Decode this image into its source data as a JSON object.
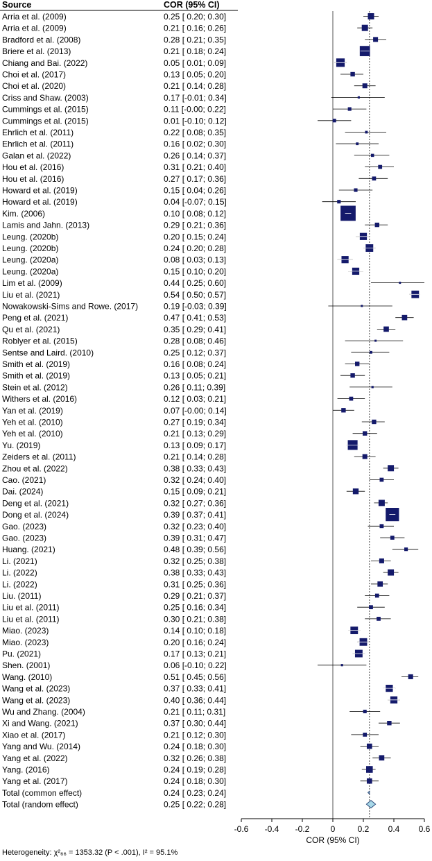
{
  "chart_data": {
    "type": "forest",
    "header_source": "Source",
    "header_estimate": "COR (95% CI)",
    "xlabel": "COR (95% CI)",
    "xlim": [
      -0.6,
      0.6
    ],
    "xticks": [
      "-0.6",
      "-0.4",
      "-0.2",
      "0",
      "0.2",
      "0.4",
      "0.6"
    ],
    "xtick_values": [
      -0.6,
      -0.4,
      -0.2,
      0,
      0.2,
      0.4,
      0.6
    ],
    "null_line": 0,
    "pooled_reference": 0.24,
    "studies": [
      {
        "name": "Arria et al. (2009)",
        "est": 0.25,
        "lo": 0.2,
        "hi": 0.3,
        "label": "0.25 [ 0.20; 0.30]",
        "w": 1.4
      },
      {
        "name": "Arria et al. (2009)",
        "est": 0.21,
        "lo": 0.16,
        "hi": 0.26,
        "label": "0.21 [ 0.16; 0.26]",
        "w": 1.4
      },
      {
        "name": "Bradford et al. (2008)",
        "est": 0.28,
        "lo": 0.21,
        "hi": 0.35,
        "label": "0.28 [ 0.21; 0.35]",
        "w": 1.1
      },
      {
        "name": "Briere et al. (2013)",
        "est": 0.21,
        "lo": 0.18,
        "hi": 0.24,
        "label": "0.21 [ 0.18; 0.24]",
        "w": 2.3
      },
      {
        "name": "Chiang and Bai. (2022)",
        "est": 0.05,
        "lo": 0.01,
        "hi": 0.09,
        "label": "0.05 [ 0.01; 0.09]",
        "w": 1.9
      },
      {
        "name": "Choi et al. (2017)",
        "est": 0.13,
        "lo": 0.05,
        "hi": 0.2,
        "label": "0.13 [ 0.05; 0.20]",
        "w": 1.0
      },
      {
        "name": "Choi et al. (2020)",
        "est": 0.21,
        "lo": 0.14,
        "hi": 0.28,
        "label": "0.21 [ 0.14; 0.28]",
        "w": 1.1
      },
      {
        "name": "Criss and Shaw. (2003)",
        "est": 0.17,
        "lo": -0.01,
        "hi": 0.34,
        "label": "0.17 [-0.01; 0.34]",
        "w": 0.5
      },
      {
        "name": "Cummings et al. (2015)",
        "est": 0.11,
        "lo": 0.0,
        "hi": 0.22,
        "label": "0.11 [-0.00; 0.22]",
        "w": 0.8
      },
      {
        "name": "Cummings et al. (2015)",
        "est": 0.01,
        "lo": -0.1,
        "hi": 0.12,
        "label": "0.01 [-0.10; 0.12]",
        "w": 0.8
      },
      {
        "name": "Ehrlich et al. (2011)",
        "est": 0.22,
        "lo": 0.08,
        "hi": 0.35,
        "label": "0.22 [ 0.08; 0.35]",
        "w": 0.6
      },
      {
        "name": "Ehrlich et al. (2011)",
        "est": 0.16,
        "lo": 0.02,
        "hi": 0.3,
        "label": "0.16 [ 0.02; 0.30]",
        "w": 0.6
      },
      {
        "name": "Galan et al. (2022)",
        "est": 0.26,
        "lo": 0.14,
        "hi": 0.37,
        "label": "0.26 [ 0.14; 0.37]",
        "w": 0.7
      },
      {
        "name": "Hou et al. (2016)",
        "est": 0.31,
        "lo": 0.21,
        "hi": 0.4,
        "label": "0.31 [ 0.21; 0.40]",
        "w": 0.9
      },
      {
        "name": "Hou et al. (2016)",
        "est": 0.27,
        "lo": 0.17,
        "hi": 0.36,
        "label": "0.27 [ 0.17; 0.36]",
        "w": 0.9
      },
      {
        "name": "Howard et al. (2019)",
        "est": 0.15,
        "lo": 0.04,
        "hi": 0.26,
        "label": "0.15 [ 0.04; 0.26]",
        "w": 0.8
      },
      {
        "name": "Howard et al. (2019)",
        "est": 0.04,
        "lo": -0.07,
        "hi": 0.15,
        "label": "0.04 [-0.07; 0.15]",
        "w": 0.8
      },
      {
        "name": "Kim. (2006)",
        "est": 0.1,
        "lo": 0.08,
        "hi": 0.12,
        "label": "0.10 [ 0.08; 0.12]",
        "w": 3.4
      },
      {
        "name": "Lamis and Jahn. (2013)",
        "est": 0.29,
        "lo": 0.21,
        "hi": 0.36,
        "label": "0.29 [ 0.21; 0.36]",
        "w": 1.0
      },
      {
        "name": "Leung. (2020b)",
        "est": 0.2,
        "lo": 0.15,
        "hi": 0.24,
        "label": "0.20 [ 0.15; 0.24]",
        "w": 1.6
      },
      {
        "name": "Leung. (2020b)",
        "est": 0.24,
        "lo": 0.2,
        "hi": 0.28,
        "label": "0.24 [ 0.20; 0.28]",
        "w": 1.7
      },
      {
        "name": "Leung. (2020a)",
        "est": 0.08,
        "lo": 0.03,
        "hi": 0.13,
        "label": "0.08 [ 0.03; 0.13]",
        "w": 1.6
      },
      {
        "name": "Leung. (2020a)",
        "est": 0.15,
        "lo": 0.1,
        "hi": 0.2,
        "label": "0.15 [ 0.10; 0.20]",
        "w": 1.6
      },
      {
        "name": "Lim et al. (2009)",
        "est": 0.44,
        "lo": 0.25,
        "hi": 0.6,
        "label": "0.44 [ 0.25; 0.60]",
        "w": 0.4
      },
      {
        "name": "Liu et al. (2021)",
        "est": 0.54,
        "lo": 0.5,
        "hi": 0.57,
        "label": "0.54 [ 0.50; 0.57]",
        "w": 1.7
      },
      {
        "name": "Nowakowski-Sims and Rowe. (2017)",
        "est": 0.19,
        "lo": -0.03,
        "hi": 0.39,
        "label": "0.19 [-0.03; 0.39]",
        "w": 0.4
      },
      {
        "name": "Peng et al. (2021)",
        "est": 0.47,
        "lo": 0.41,
        "hi": 0.53,
        "label": "0.47 [ 0.41; 0.53]",
        "w": 1.2
      },
      {
        "name": "Qu et al. (2021)",
        "est": 0.35,
        "lo": 0.29,
        "hi": 0.41,
        "label": "0.35 [ 0.29; 0.41]",
        "w": 1.2
      },
      {
        "name": "Roblyer et al. (2015)",
        "est": 0.28,
        "lo": 0.08,
        "hi": 0.46,
        "label": "0.28 [ 0.08; 0.46]",
        "w": 0.4
      },
      {
        "name": "Sentse and Laird. (2010)",
        "est": 0.25,
        "lo": 0.12,
        "hi": 0.37,
        "label": "0.25 [ 0.12; 0.37]",
        "w": 0.6
      },
      {
        "name": "Smith et al. (2019)",
        "est": 0.16,
        "lo": 0.08,
        "hi": 0.24,
        "label": "0.16 [ 0.08; 0.24]",
        "w": 1.0
      },
      {
        "name": "Smith et al. (2019)",
        "est": 0.13,
        "lo": 0.05,
        "hi": 0.21,
        "label": "0.13 [ 0.05; 0.21]",
        "w": 1.0
      },
      {
        "name": "Stein et al. (2012)",
        "est": 0.26,
        "lo": 0.11,
        "hi": 0.39,
        "label": "0.26 [ 0.11; 0.39]",
        "w": 0.5
      },
      {
        "name": "Withers et al. (2016)",
        "est": 0.12,
        "lo": 0.03,
        "hi": 0.21,
        "label": "0.12 [ 0.03; 0.21]",
        "w": 0.9
      },
      {
        "name": "Yan et al. (2019)",
        "est": 0.07,
        "lo": 0.0,
        "hi": 0.14,
        "label": "0.07 [-0.00; 0.14]",
        "w": 1.0
      },
      {
        "name": "Yeh et al. (2010)",
        "est": 0.27,
        "lo": 0.19,
        "hi": 0.34,
        "label": "0.27 [ 0.19; 0.34]",
        "w": 1.0
      },
      {
        "name": "Yeh et al. (2010)",
        "est": 0.21,
        "lo": 0.13,
        "hi": 0.29,
        "label": "0.21 [ 0.13; 0.29]",
        "w": 1.0
      },
      {
        "name": "Yu. (2019)",
        "est": 0.13,
        "lo": 0.09,
        "hi": 0.17,
        "label": "0.13 [ 0.09; 0.17]",
        "w": 2.2
      },
      {
        "name": "Zeiders et al. (2011)",
        "est": 0.21,
        "lo": 0.14,
        "hi": 0.28,
        "label": "0.21 [ 0.14; 0.28]",
        "w": 1.1
      },
      {
        "name": "Zhou et al. (2022)",
        "est": 0.38,
        "lo": 0.33,
        "hi": 0.43,
        "label": "0.38 [ 0.33; 0.43]",
        "w": 1.4
      },
      {
        "name": "Cao. (2021)",
        "est": 0.32,
        "lo": 0.24,
        "hi": 0.4,
        "label": "0.32 [ 0.24; 0.40]",
        "w": 0.9
      },
      {
        "name": "Dai. (2024)",
        "est": 0.15,
        "lo": 0.09,
        "hi": 0.21,
        "label": "0.15 [ 0.09; 0.21]",
        "w": 1.3
      },
      {
        "name": "Deng et al. (2021)",
        "est": 0.32,
        "lo": 0.27,
        "hi": 0.36,
        "label": "0.32 [ 0.27; 0.36]",
        "w": 1.4
      },
      {
        "name": "Dong et al. (2024)",
        "est": 0.39,
        "lo": 0.37,
        "hi": 0.41,
        "label": "0.39 [ 0.37; 0.41]",
        "w": 3.0
      },
      {
        "name": "Gao. (2023)",
        "est": 0.32,
        "lo": 0.23,
        "hi": 0.4,
        "label": "0.32 [ 0.23; 0.40]",
        "w": 0.9
      },
      {
        "name": "Gao. (2023)",
        "est": 0.39,
        "lo": 0.31,
        "hi": 0.47,
        "label": "0.39 [ 0.31; 0.47]",
        "w": 0.9
      },
      {
        "name": "Huang. (2021)",
        "est": 0.48,
        "lo": 0.39,
        "hi": 0.56,
        "label": "0.48 [ 0.39; 0.56]",
        "w": 0.8
      },
      {
        "name": "Li. (2021)",
        "est": 0.32,
        "lo": 0.25,
        "hi": 0.38,
        "label": "0.32 [ 0.25; 0.38]",
        "w": 1.1
      },
      {
        "name": "Li. (2022)",
        "est": 0.38,
        "lo": 0.33,
        "hi": 0.43,
        "label": "0.38 [ 0.33; 0.43]",
        "w": 1.4
      },
      {
        "name": "Li. (2022)",
        "est": 0.31,
        "lo": 0.25,
        "hi": 0.36,
        "label": "0.31 [ 0.25; 0.36]",
        "w": 1.2
      },
      {
        "name": "Liu. (2011)",
        "est": 0.29,
        "lo": 0.21,
        "hi": 0.37,
        "label": "0.29 [ 0.21; 0.37]",
        "w": 0.9
      },
      {
        "name": "Liu et al. (2011)",
        "est": 0.25,
        "lo": 0.16,
        "hi": 0.34,
        "label": "0.25 [ 0.16; 0.34]",
        "w": 0.9
      },
      {
        "name": "Liu et al. (2011)",
        "est": 0.3,
        "lo": 0.21,
        "hi": 0.38,
        "label": "0.30 [ 0.21; 0.38]",
        "w": 0.9
      },
      {
        "name": "Miao. (2023)",
        "est": 0.14,
        "lo": 0.1,
        "hi": 0.18,
        "label": "0.14 [ 0.10; 0.18]",
        "w": 1.7
      },
      {
        "name": "Miao. (2023)",
        "est": 0.2,
        "lo": 0.16,
        "hi": 0.24,
        "label": "0.20 [ 0.16; 0.24]",
        "w": 1.7
      },
      {
        "name": "Pu. (2021)",
        "est": 0.17,
        "lo": 0.13,
        "hi": 0.21,
        "label": "0.17 [ 0.13; 0.21]",
        "w": 1.7
      },
      {
        "name": "Shen. (2001)",
        "est": 0.06,
        "lo": -0.1,
        "hi": 0.22,
        "label": "0.06 [-0.10; 0.22]",
        "w": 0.5
      },
      {
        "name": "Wang. (2010)",
        "est": 0.51,
        "lo": 0.45,
        "hi": 0.56,
        "label": "0.51 [ 0.45; 0.56]",
        "w": 1.1
      },
      {
        "name": "Wang et al. (2023)",
        "est": 0.37,
        "lo": 0.33,
        "hi": 0.41,
        "label": "0.37 [ 0.33; 0.41]",
        "w": 1.6
      },
      {
        "name": "Wang et al. (2023)",
        "est": 0.4,
        "lo": 0.36,
        "hi": 0.44,
        "label": "0.40 [ 0.36; 0.44]",
        "w": 1.6
      },
      {
        "name": "Wu and Zhang. (2004)",
        "est": 0.21,
        "lo": 0.11,
        "hi": 0.31,
        "label": "0.21 [ 0.11; 0.31]",
        "w": 0.8
      },
      {
        "name": "Xi and Wang. (2021)",
        "est": 0.37,
        "lo": 0.3,
        "hi": 0.44,
        "label": "0.37 [ 0.30; 0.44]",
        "w": 1.0
      },
      {
        "name": "Xiao et al. (2017)",
        "est": 0.21,
        "lo": 0.12,
        "hi": 0.3,
        "label": "0.21 [ 0.12; 0.30]",
        "w": 0.9
      },
      {
        "name": "Yang and Wu. (2014)",
        "est": 0.24,
        "lo": 0.18,
        "hi": 0.3,
        "label": "0.24 [ 0.18; 0.30]",
        "w": 1.2
      },
      {
        "name": "Yang et al. (2022)",
        "est": 0.32,
        "lo": 0.26,
        "hi": 0.38,
        "label": "0.32 [ 0.26; 0.38]",
        "w": 1.2
      },
      {
        "name": "Yang. (2016)",
        "est": 0.24,
        "lo": 0.19,
        "hi": 0.28,
        "label": "0.24 [ 0.19; 0.28]",
        "w": 1.5
      },
      {
        "name": "Yang et al. (2017)",
        "est": 0.24,
        "lo": 0.18,
        "hi": 0.3,
        "label": "0.24 [ 0.18; 0.30]",
        "w": 1.2
      }
    ],
    "pooled": [
      {
        "name": "Total (common effect)",
        "est": 0.24,
        "lo": 0.23,
        "hi": 0.24,
        "label": "0.24 [ 0.23; 0.24]"
      },
      {
        "name": "Total (random effect)",
        "est": 0.25,
        "lo": 0.22,
        "hi": 0.28,
        "label": "0.25 [ 0.22; 0.28]"
      }
    ],
    "heterogeneity": "Heterogeneity: χ²₆₆ = 1353.32 (P < .001), I² = 95.1%",
    "colors": {
      "marker": "#141a6b",
      "diamond": "#a8d8e8",
      "diamond_stroke": "#2b4a7a",
      "line": "#000000"
    }
  }
}
